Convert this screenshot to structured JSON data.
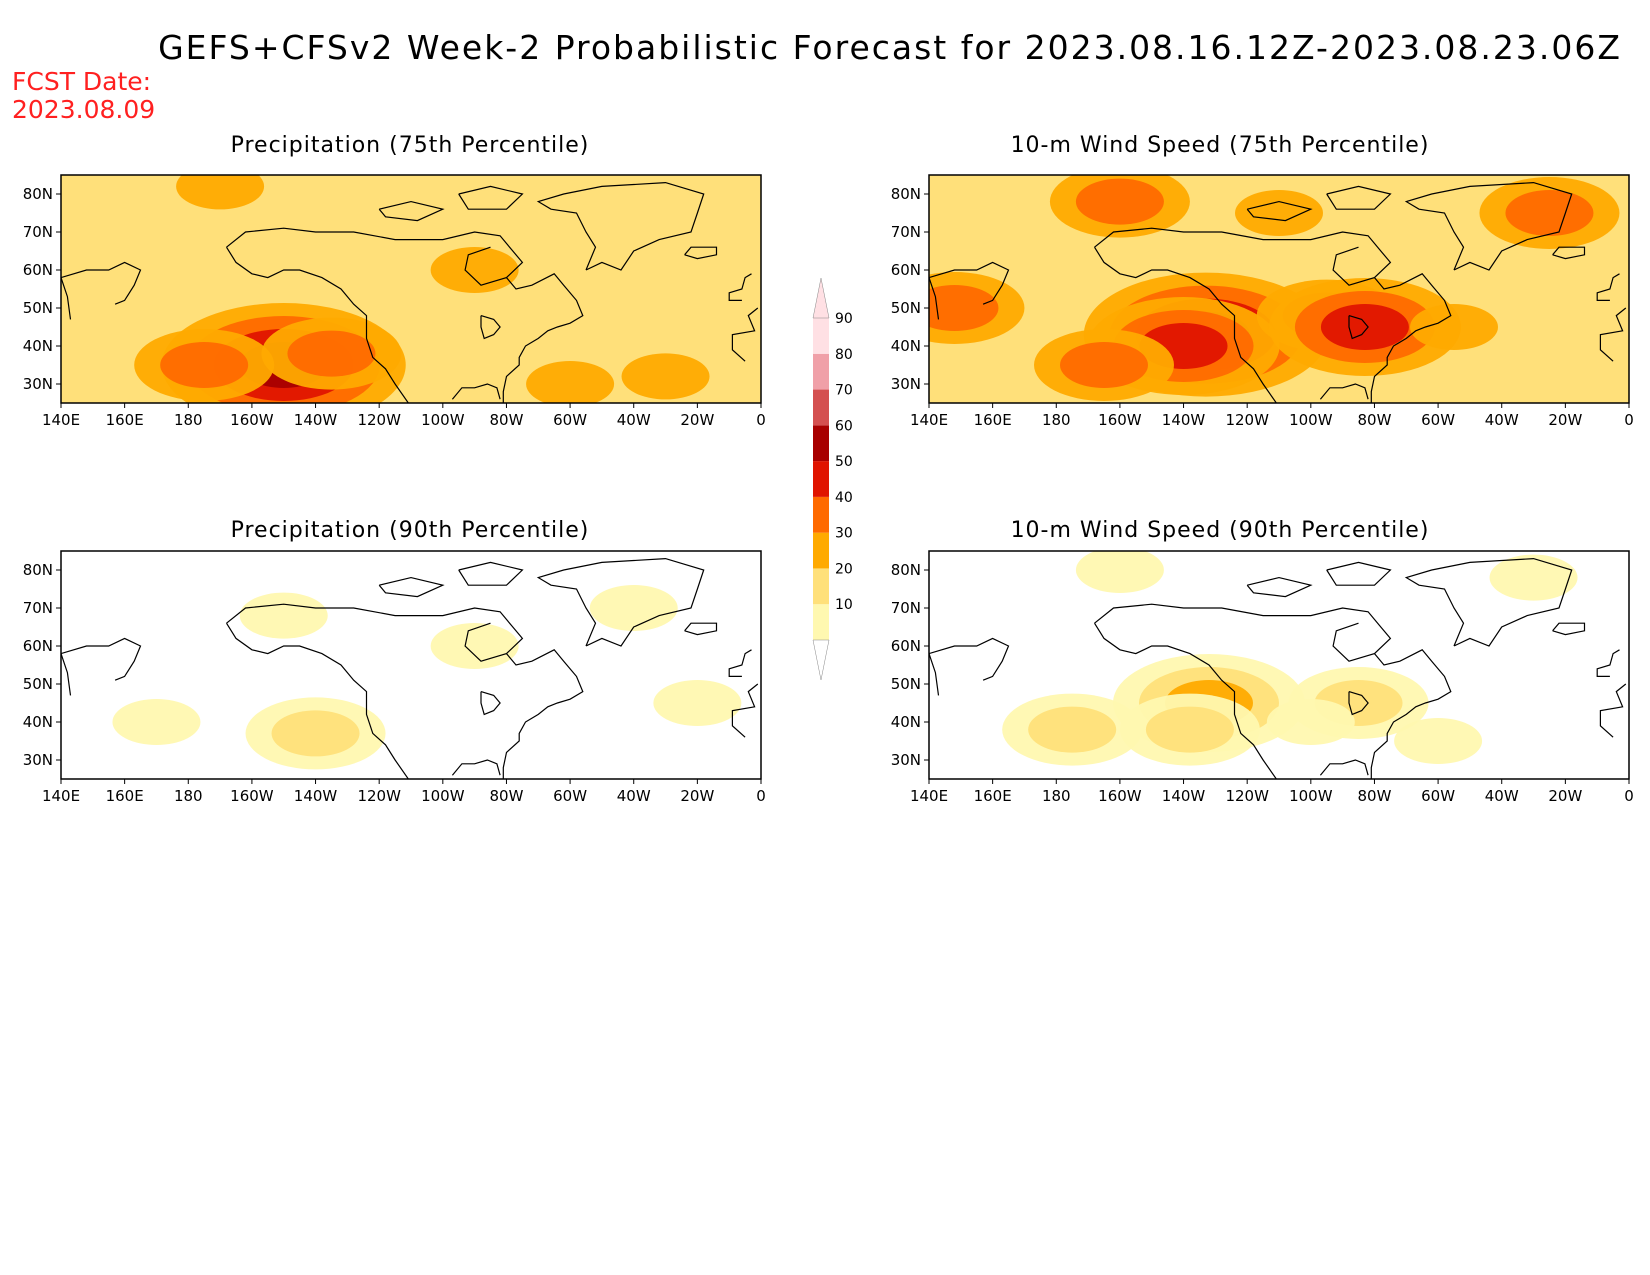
{
  "title": "GEFS+CFSv2 Week-2 Probabilistic Forecast for 2023.08.16.12Z-2023.08.23.06Z",
  "fcst_date_label": "FCST Date:",
  "fcst_date_value": "2023.08.09",
  "colors": {
    "title_text": "#000000",
    "fcst_text": "#ff2020",
    "levels": [
      "#fff8b0",
      "#ffe07a",
      "#ffaa00",
      "#ff6a00",
      "#e01400",
      "#a80000",
      "#d45050",
      "#f0a0a8",
      "#ffe0e4"
    ]
  },
  "colorbar": {
    "labels": [
      "10",
      "20",
      "30",
      "40",
      "50",
      "60",
      "70",
      "80",
      "90"
    ]
  },
  "axes": {
    "x_ticks": [
      "140E",
      "160E",
      "180",
      "160W",
      "140W",
      "120W",
      "100W",
      "80W",
      "60W",
      "40W",
      "20W",
      "0"
    ],
    "y_ticks": [
      "80N",
      "70N",
      "60N",
      "50N",
      "40N",
      "30N"
    ]
  },
  "panels": [
    {
      "id": "precip-75",
      "title": "Precipitation (75th Percentile)",
      "blobs": [
        {
          "lon": -150,
          "lat": 35,
          "level": 5
        },
        {
          "lon": -135,
          "lat": 38,
          "level": 3
        },
        {
          "lon": -175,
          "lat": 35,
          "level": 3
        },
        {
          "lon": -170,
          "lat": 82,
          "level": 2
        },
        {
          "lon": -90,
          "lat": 60,
          "level": 2
        },
        {
          "lon": -60,
          "lat": 30,
          "level": 2
        },
        {
          "lon": -30,
          "lat": 32,
          "level": 2
        },
        {
          "lon": -80,
          "lat": 45,
          "level": 1
        },
        {
          "lon": -40,
          "lat": 60,
          "level": 1
        },
        {
          "lon": 150,
          "lat": 45,
          "level": 1
        },
        {
          "lon": -120,
          "lat": 70,
          "level": 1
        }
      ],
      "base_level": 1
    },
    {
      "id": "wind-75",
      "title": "10-m Wind Speed (75th Percentile)",
      "blobs": [
        {
          "lon": -133,
          "lat": 43,
          "level": 5
        },
        {
          "lon": -140,
          "lat": 40,
          "level": 4
        },
        {
          "lon": -165,
          "lat": 35,
          "level": 3
        },
        {
          "lon": -95,
          "lat": 48,
          "level": 3
        },
        {
          "lon": -83,
          "lat": 45,
          "level": 4
        },
        {
          "lon": -25,
          "lat": 75,
          "level": 3
        },
        {
          "lon": -160,
          "lat": 78,
          "level": 3
        },
        {
          "lon": 148,
          "lat": 50,
          "level": 3
        },
        {
          "lon": -55,
          "lat": 45,
          "level": 2
        },
        {
          "lon": -30,
          "lat": 45,
          "level": 1
        },
        {
          "lon": -110,
          "lat": 75,
          "level": 2
        }
      ],
      "base_level": 1
    },
    {
      "id": "precip-90",
      "title": "Precipitation (90th Percentile)",
      "blobs": [
        {
          "lon": -140,
          "lat": 37,
          "level": 1
        },
        {
          "lon": -20,
          "lat": 45,
          "level": 0
        },
        {
          "lon": -90,
          "lat": 60,
          "level": 0
        },
        {
          "lon": -150,
          "lat": 68,
          "level": 0
        },
        {
          "lon": 170,
          "lat": 40,
          "level": 0
        },
        {
          "lon": -40,
          "lat": 70,
          "level": 0
        }
      ],
      "base_level": -1
    },
    {
      "id": "wind-90",
      "title": "10-m Wind Speed (90th Percentile)",
      "blobs": [
        {
          "lon": -132,
          "lat": 45,
          "level": 2
        },
        {
          "lon": -138,
          "lat": 38,
          "level": 1
        },
        {
          "lon": -175,
          "lat": 38,
          "level": 1
        },
        {
          "lon": -85,
          "lat": 45,
          "level": 1
        },
        {
          "lon": -30,
          "lat": 78,
          "level": 0
        },
        {
          "lon": -160,
          "lat": 80,
          "level": 0
        },
        {
          "lon": -60,
          "lat": 35,
          "level": 0
        },
        {
          "lon": -100,
          "lat": 40,
          "level": 0
        }
      ],
      "base_level": -1
    }
  ]
}
